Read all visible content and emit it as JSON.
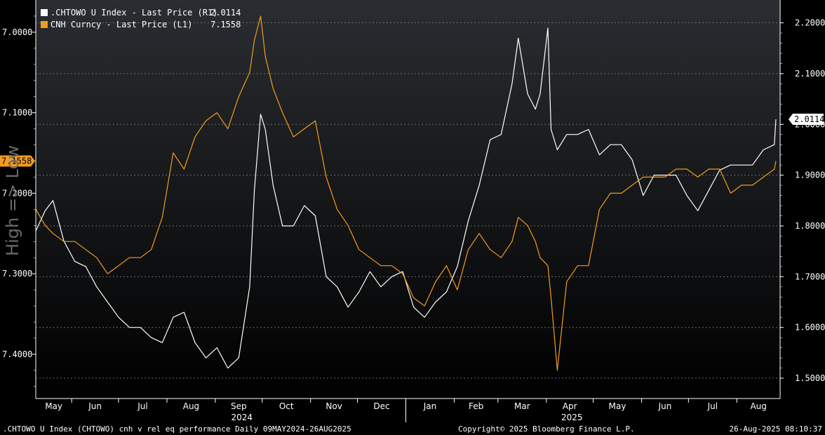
{
  "legend": {
    "series1_label": ".CHTOWO U Index - Last Price (R1)",
    "series1_value": "2.0114",
    "series2_label": "CNH Curncy - Last Price (L1)",
    "series2_value": "7.1558"
  },
  "left_axis_label": "High => Low",
  "footer": {
    "left": ".CHTOWO U Index (CHTOWO) cnh v rel eq performance  Daily 09MAY2024-26AUG2025",
    "mid": "Copyright© 2025 Bloomberg Finance L.P.",
    "right": "26-Aug-2025 08:10:37"
  },
  "tags": {
    "left": "7.1558",
    "right": "2.0114"
  },
  "colors": {
    "background_top": "#2a2d31",
    "background_bottom": "#000000",
    "series1": "#ffffff",
    "series2": "#f39c1f",
    "grid": "#6a6a6a",
    "axis_text": "#ffffff"
  },
  "chart_data": {
    "type": "line",
    "x_range": [
      "2024-05-09",
      "2025-08-26"
    ],
    "x_month_labels": [
      "May",
      "Jun",
      "Jul",
      "Aug",
      "Sep",
      "Oct",
      "Nov",
      "Dec",
      "Jan",
      "Feb",
      "Mar",
      "Apr",
      "May",
      "Jun",
      "Jul",
      "Aug"
    ],
    "x_year_labels": [
      "2024",
      "2025"
    ],
    "left_axis": {
      "inverted": true,
      "ylim": [
        6.96,
        7.455
      ],
      "ticks": [
        "7.0000",
        "7.1000",
        "7.2000",
        "7.3000",
        "7.4000"
      ]
    },
    "right_axis": {
      "ylim": [
        1.46,
        2.245
      ],
      "ticks": [
        "1.5000",
        "1.6000",
        "1.7000",
        "1.8000",
        "1.9000",
        "2.0000",
        "2.1000",
        "2.2000"
      ]
    },
    "grid": true,
    "legend_position": "top-left",
    "series": [
      {
        "name": ".CHTOWO U Index - Last Price (R1)",
        "axis": "right",
        "points": [
          [
            "2024-05-09",
            1.79
          ],
          [
            "2024-05-15",
            1.83
          ],
          [
            "2024-05-20",
            1.85
          ],
          [
            "2024-05-27",
            1.77
          ],
          [
            "2024-06-03",
            1.73
          ],
          [
            "2024-06-10",
            1.72
          ],
          [
            "2024-06-17",
            1.68
          ],
          [
            "2024-06-24",
            1.65
          ],
          [
            "2024-07-01",
            1.62
          ],
          [
            "2024-07-08",
            1.6
          ],
          [
            "2024-07-15",
            1.6
          ],
          [
            "2024-07-22",
            1.58
          ],
          [
            "2024-07-29",
            1.57
          ],
          [
            "2024-08-05",
            1.62
          ],
          [
            "2024-08-12",
            1.63
          ],
          [
            "2024-08-19",
            1.57
          ],
          [
            "2024-08-26",
            1.54
          ],
          [
            "2024-09-02",
            1.56
          ],
          [
            "2024-09-09",
            1.52
          ],
          [
            "2024-09-16",
            1.54
          ],
          [
            "2024-09-23",
            1.68
          ],
          [
            "2024-09-26",
            1.87
          ],
          [
            "2024-09-30",
            2.02
          ],
          [
            "2024-10-03",
            1.99
          ],
          [
            "2024-10-08",
            1.88
          ],
          [
            "2024-10-14",
            1.8
          ],
          [
            "2024-10-21",
            1.8
          ],
          [
            "2024-10-28",
            1.84
          ],
          [
            "2024-11-04",
            1.82
          ],
          [
            "2024-11-11",
            1.7
          ],
          [
            "2024-11-18",
            1.68
          ],
          [
            "2024-11-25",
            1.64
          ],
          [
            "2024-12-02",
            1.67
          ],
          [
            "2024-12-09",
            1.71
          ],
          [
            "2024-12-16",
            1.68
          ],
          [
            "2024-12-23",
            1.7
          ],
          [
            "2024-12-30",
            1.71
          ],
          [
            "2025-01-06",
            1.64
          ],
          [
            "2025-01-13",
            1.62
          ],
          [
            "2025-01-20",
            1.65
          ],
          [
            "2025-01-27",
            1.67
          ],
          [
            "2025-02-03",
            1.72
          ],
          [
            "2025-02-10",
            1.81
          ],
          [
            "2025-02-17",
            1.88
          ],
          [
            "2025-02-24",
            1.97
          ],
          [
            "2025-03-03",
            1.98
          ],
          [
            "2025-03-10",
            2.08
          ],
          [
            "2025-03-14",
            2.17
          ],
          [
            "2025-03-20",
            2.06
          ],
          [
            "2025-03-25",
            2.03
          ],
          [
            "2025-03-28",
            2.06
          ],
          [
            "2025-04-02",
            2.19
          ],
          [
            "2025-04-04",
            1.99
          ],
          [
            "2025-04-08",
            1.95
          ],
          [
            "2025-04-14",
            1.98
          ],
          [
            "2025-04-21",
            1.98
          ],
          [
            "2025-04-28",
            1.99
          ],
          [
            "2025-05-05",
            1.94
          ],
          [
            "2025-05-12",
            1.96
          ],
          [
            "2025-05-19",
            1.96
          ],
          [
            "2025-05-26",
            1.93
          ],
          [
            "2025-06-02",
            1.86
          ],
          [
            "2025-06-09",
            1.9
          ],
          [
            "2025-06-16",
            1.9
          ],
          [
            "2025-06-23",
            1.9
          ],
          [
            "2025-06-30",
            1.86
          ],
          [
            "2025-07-07",
            1.83
          ],
          [
            "2025-07-14",
            1.87
          ],
          [
            "2025-07-21",
            1.91
          ],
          [
            "2025-07-28",
            1.92
          ],
          [
            "2025-08-04",
            1.92
          ],
          [
            "2025-08-11",
            1.92
          ],
          [
            "2025-08-18",
            1.95
          ],
          [
            "2025-08-25",
            1.96
          ],
          [
            "2025-08-26",
            2.01
          ]
        ]
      },
      {
        "name": "CNH Curncy - Last Price (L1)",
        "axis": "left",
        "points": [
          [
            "2024-05-09",
            7.22
          ],
          [
            "2024-05-15",
            7.24
          ],
          [
            "2024-05-20",
            7.25
          ],
          [
            "2024-05-27",
            7.26
          ],
          [
            "2024-06-03",
            7.26
          ],
          [
            "2024-06-10",
            7.27
          ],
          [
            "2024-06-17",
            7.28
          ],
          [
            "2024-06-24",
            7.3
          ],
          [
            "2024-07-01",
            7.29
          ],
          [
            "2024-07-08",
            7.28
          ],
          [
            "2024-07-15",
            7.28
          ],
          [
            "2024-07-22",
            7.27
          ],
          [
            "2024-07-29",
            7.23
          ],
          [
            "2024-08-05",
            7.15
          ],
          [
            "2024-08-12",
            7.17
          ],
          [
            "2024-08-19",
            7.13
          ],
          [
            "2024-08-26",
            7.11
          ],
          [
            "2024-09-02",
            7.1
          ],
          [
            "2024-09-09",
            7.12
          ],
          [
            "2024-09-16",
            7.08
          ],
          [
            "2024-09-23",
            7.05
          ],
          [
            "2024-09-26",
            7.01
          ],
          [
            "2024-09-30",
            6.98
          ],
          [
            "2024-10-03",
            7.03
          ],
          [
            "2024-10-08",
            7.07
          ],
          [
            "2024-10-14",
            7.1
          ],
          [
            "2024-10-21",
            7.13
          ],
          [
            "2024-10-28",
            7.12
          ],
          [
            "2024-11-04",
            7.11
          ],
          [
            "2024-11-11",
            7.18
          ],
          [
            "2024-11-18",
            7.22
          ],
          [
            "2024-11-25",
            7.24
          ],
          [
            "2024-12-02",
            7.27
          ],
          [
            "2024-12-09",
            7.28
          ],
          [
            "2024-12-16",
            7.29
          ],
          [
            "2024-12-23",
            7.29
          ],
          [
            "2024-12-30",
            7.3
          ],
          [
            "2025-01-06",
            7.33
          ],
          [
            "2025-01-13",
            7.34
          ],
          [
            "2025-01-20",
            7.31
          ],
          [
            "2025-01-27",
            7.29
          ],
          [
            "2025-02-03",
            7.32
          ],
          [
            "2025-02-10",
            7.27
          ],
          [
            "2025-02-17",
            7.25
          ],
          [
            "2025-02-24",
            7.27
          ],
          [
            "2025-03-03",
            7.28
          ],
          [
            "2025-03-10",
            7.26
          ],
          [
            "2025-03-14",
            7.23
          ],
          [
            "2025-03-20",
            7.24
          ],
          [
            "2025-03-25",
            7.26
          ],
          [
            "2025-03-28",
            7.28
          ],
          [
            "2025-04-02",
            7.29
          ],
          [
            "2025-04-04",
            7.33
          ],
          [
            "2025-04-08",
            7.42
          ],
          [
            "2025-04-14",
            7.31
          ],
          [
            "2025-04-21",
            7.29
          ],
          [
            "2025-04-28",
            7.29
          ],
          [
            "2025-05-05",
            7.22
          ],
          [
            "2025-05-12",
            7.2
          ],
          [
            "2025-05-19",
            7.2
          ],
          [
            "2025-05-26",
            7.19
          ],
          [
            "2025-06-02",
            7.18
          ],
          [
            "2025-06-09",
            7.18
          ],
          [
            "2025-06-16",
            7.18
          ],
          [
            "2025-06-23",
            7.17
          ],
          [
            "2025-06-30",
            7.17
          ],
          [
            "2025-07-07",
            7.18
          ],
          [
            "2025-07-14",
            7.17
          ],
          [
            "2025-07-21",
            7.17
          ],
          [
            "2025-07-28",
            7.2
          ],
          [
            "2025-08-04",
            7.19
          ],
          [
            "2025-08-11",
            7.19
          ],
          [
            "2025-08-18",
            7.18
          ],
          [
            "2025-08-25",
            7.17
          ],
          [
            "2025-08-26",
            7.16
          ]
        ]
      }
    ]
  }
}
